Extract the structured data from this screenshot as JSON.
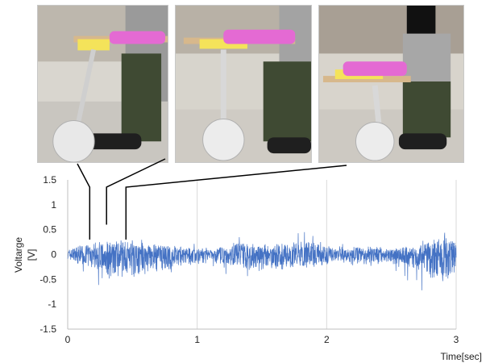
{
  "photos": [
    {
      "caption": "",
      "icon": "apparatus-photo"
    },
    {
      "caption": "",
      "icon": "apparatus-photo"
    },
    {
      "caption": "",
      "icon": "apparatus-photo"
    }
  ],
  "chart_data": {
    "type": "line",
    "xlabel": "Time[sec]",
    "ylabel_line1": "Voltarge",
    "ylabel_line2": "[V]",
    "xlim": [
      0,
      3
    ],
    "ylim": [
      -1.5,
      1.5
    ],
    "xticks": [
      0,
      1,
      2,
      3
    ],
    "yticks": [
      1.5,
      1,
      0.5,
      0,
      -0.5,
      -1,
      -1.5
    ],
    "grid_vertical": true,
    "grid_horizontal": false,
    "legend": "none",
    "line_color": "#4472c4",
    "sample_count": 1800,
    "envelope": {
      "time": [
        0,
        0.2,
        0.3,
        0.5,
        0.7,
        0.9,
        1.1,
        1.3,
        1.5,
        1.7,
        1.9,
        2.1,
        2.3,
        2.5,
        2.7,
        2.9,
        3.0
      ],
      "upper": [
        0.2,
        0.45,
        0.55,
        0.55,
        0.35,
        0.3,
        0.2,
        0.5,
        0.35,
        0.45,
        0.5,
        0.25,
        0.3,
        0.25,
        0.35,
        0.7,
        0.5
      ],
      "lower": [
        -0.2,
        -0.55,
        -0.9,
        -0.8,
        -0.6,
        -0.45,
        -0.3,
        -0.6,
        -0.6,
        -0.5,
        -0.5,
        -0.3,
        -0.45,
        -0.35,
        -0.65,
        -1.15,
        -0.7
      ]
    },
    "callouts": [
      {
        "photo": 1,
        "time": 0.17,
        "value": 0.3
      },
      {
        "photo": 2,
        "time": 0.3,
        "value": 0.6
      },
      {
        "photo": 3,
        "time": 0.45,
        "value": 0.3
      }
    ]
  }
}
